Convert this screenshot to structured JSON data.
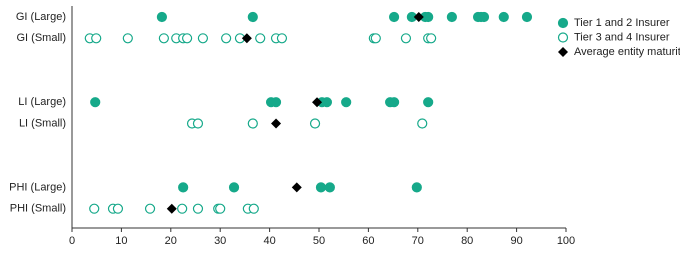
{
  "chart_data": {
    "type": "dotplot",
    "categories": [
      "GI (Large)",
      "GI (Small)",
      null,
      null,
      "LI (Large)",
      "LI (Small)",
      null,
      null,
      "PHI (Large)",
      "PHI (Small)"
    ],
    "series": [
      {
        "name": "Tier 1 and 2 Insurer",
        "color": "#16a98a",
        "marker": "circle",
        "values": [
          [
            18.2,
            36.6,
            65.2,
            68.8,
            71.5,
            72.1,
            76.9,
            82.2,
            82.8,
            83.4,
            87.4,
            92.1
          ],
          [],
          null,
          null,
          [
            4.7,
            40.3,
            41.3,
            50.6,
            51.6,
            55.5,
            64.4,
            65.2,
            72.1
          ],
          [],
          null,
          null,
          [
            22.5,
            32.8,
            50.4,
            52.2,
            69.8
          ],
          []
        ]
      },
      {
        "name": "Tier 3 and 4 Insurer",
        "color": "#16a98a",
        "marker": "open-circle",
        "values": [
          [],
          [
            3.6,
            4.9,
            11.3,
            18.6,
            21.1,
            22.5,
            23.3,
            26.5,
            31.2,
            34.0,
            38.1,
            41.3,
            42.5,
            61.1,
            61.5,
            67.6,
            72.1,
            72.7
          ],
          null,
          null,
          [],
          [
            24.3,
            25.5,
            36.6,
            49.2,
            70.9
          ],
          null,
          null,
          [],
          [
            4.5,
            8.3,
            9.3,
            15.8,
            22.3,
            25.5,
            29.6,
            30.0,
            35.6,
            36.8
          ]
        ]
      },
      {
        "name": "Average entity maturity",
        "color": "#000000",
        "marker": "diamond",
        "values": [
          [
            70.2
          ],
          [
            35.4
          ],
          null,
          null,
          [
            49.6
          ],
          [
            41.3
          ],
          null,
          null,
          [
            45.5
          ],
          [
            20.2
          ]
        ]
      }
    ],
    "xlim": [
      0,
      100
    ],
    "xticks": [
      0,
      10,
      20,
      30,
      40,
      50,
      60,
      70,
      80,
      90,
      100
    ],
    "legend": "upper right"
  }
}
